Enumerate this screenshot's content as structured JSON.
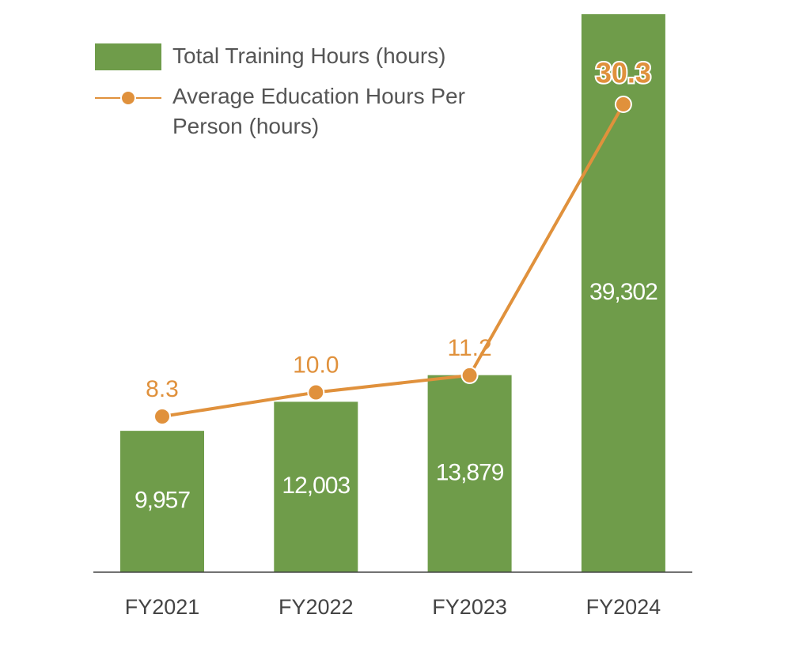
{
  "chart_data": {
    "type": "bar_line",
    "categories": [
      "FY2021",
      "FY2022",
      "FY2023",
      "FY2024"
    ],
    "series": [
      {
        "name": "Total Training Hours (hours)",
        "type": "bar",
        "color": "#6f9c4a",
        "values": [
          9957,
          12003,
          13879,
          39302
        ],
        "value_labels": [
          "9,957",
          "12,003",
          "13,879",
          "39,302"
        ]
      },
      {
        "name": "Average Education Hours Per Person (hours)",
        "type": "line",
        "axis": "y2",
        "color": "#e0913c",
        "values": [
          8.3,
          10.0,
          11.2,
          30.3
        ],
        "value_labels": [
          "8.3",
          "10.0",
          "11.2",
          "30.3"
        ]
      }
    ]
  }
}
